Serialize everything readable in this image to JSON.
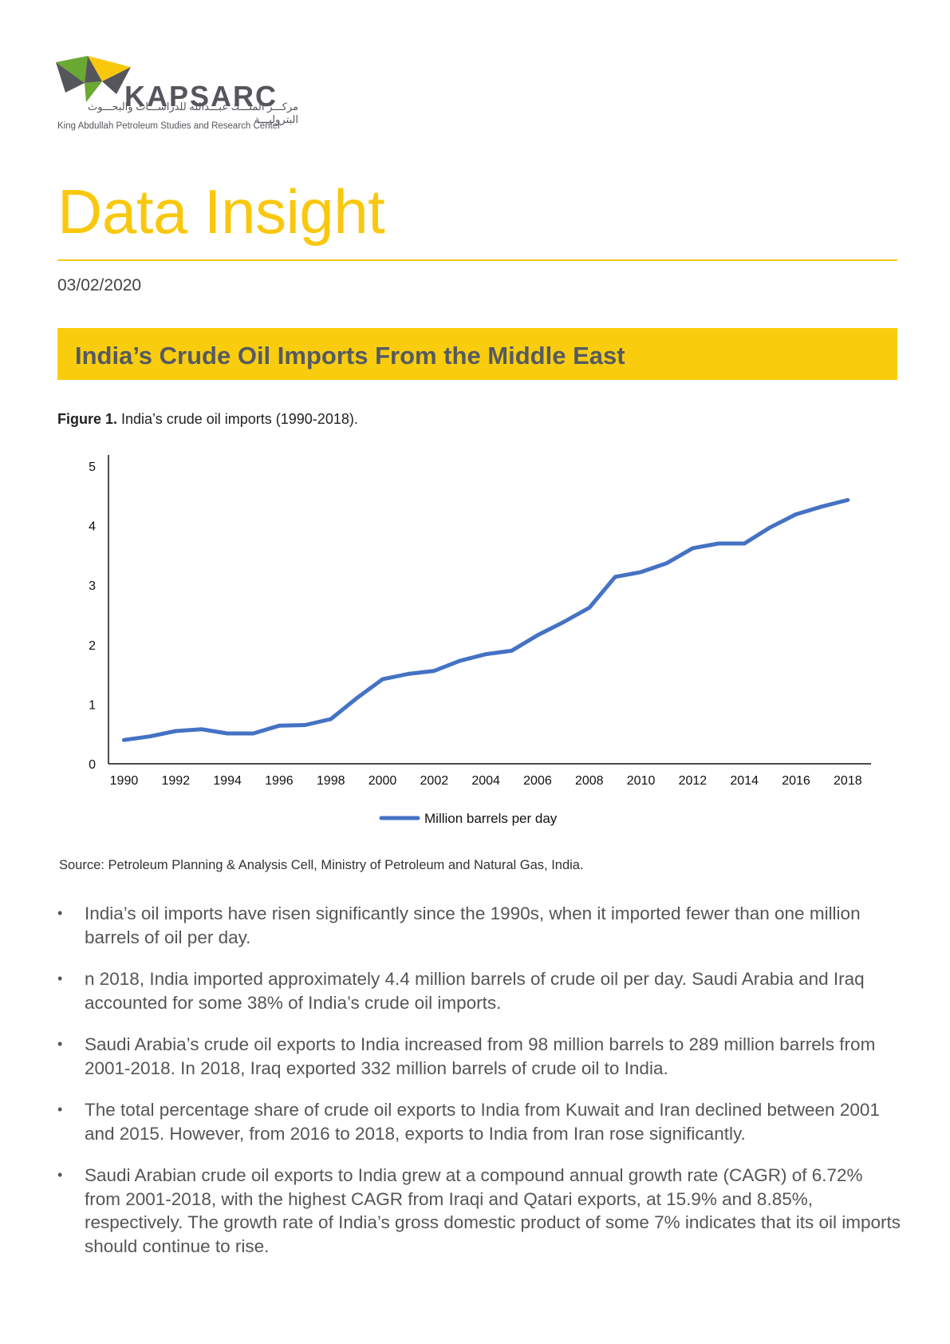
{
  "brand": {
    "name": "KAPSARC",
    "arabic": "مركـــز الملـــك عبـــدالله للدراســـات والبحـــوث البتروليـــة",
    "subtitle": "King Abdullah Petroleum Studies and Research Center",
    "colors": {
      "yellow": "#f9c80e",
      "green": "#6aa832",
      "gray": "#54565b"
    }
  },
  "document": {
    "title": "Data Insight",
    "date": "03/02/2020",
    "banner_title": "India’s Crude Oil Imports From the Middle East",
    "figure_label": "Figure 1.",
    "figure_caption": " India’s crude oil imports (1990-2018).",
    "source": "Source: Petroleum Planning & Analysis Cell, Ministry of Petroleum and Natural Gas, India.",
    "bullet_marker": "•",
    "bullets": [
      "India’s oil imports have risen significantly since the 1990s, when it imported fewer than one million barrels of oil per day.",
      "n 2018, India imported approximately 4.4 million barrels of crude oil per day. Saudi Arabia and Iraq accounted for some 38% of India’s crude oil imports.",
      "Saudi Arabia’s crude oil exports to India increased from 98 million barrels to 289 million barrels from 2001-2018. In 2018, Iraq exported 332 million barrels of crude oil to India.",
      "The total percentage share of crude oil exports to India from Kuwait and Iran declined between 2001 and 2015. However, from 2016 to 2018, exports to India from Iran rose significantly.",
      "Saudi Arabian crude oil exports to India grew at a compound annual growth rate (CAGR) of 6.72% from 2001-2018, with the highest CAGR from Iraqi and Qatari exports, at 15.9% and 8.85%, respectively. The growth rate of India’s gross domestic product of some 7% indicates that its oil imports should continue to rise."
    ]
  },
  "chart_data": {
    "type": "line",
    "x": [
      1990,
      1991,
      1992,
      1993,
      1994,
      1995,
      1996,
      1997,
      1998,
      1999,
      2000,
      2001,
      2002,
      2003,
      2004,
      2005,
      2006,
      2007,
      2008,
      2009,
      2010,
      2011,
      2012,
      2013,
      2014,
      2015,
      2016,
      2017,
      2018
    ],
    "series": [
      {
        "name": "Million barrels per day",
        "color": "#4472c4",
        "values": [
          0.4,
          0.46,
          0.55,
          0.58,
          0.51,
          0.51,
          0.64,
          0.65,
          0.75,
          1.1,
          1.42,
          1.51,
          1.56,
          1.73,
          1.84,
          1.9,
          2.16,
          2.38,
          2.62,
          3.14,
          3.22,
          3.37,
          3.62,
          3.7,
          3.7,
          3.97,
          4.19,
          4.32,
          4.43
        ]
      }
    ],
    "xticks": [
      "1990",
      "1992",
      "1994",
      "1996",
      "1998",
      "2000",
      "2002",
      "2004",
      "2006",
      "2008",
      "2010",
      "2012",
      "2014",
      "2016",
      "2018"
    ],
    "yticks": [
      "0",
      "1",
      "2",
      "3",
      "4",
      "5"
    ],
    "ylim": [
      0,
      5
    ],
    "xlim": [
      1989.4,
      2018.9
    ],
    "legend": "bottom-center",
    "grid": false
  }
}
